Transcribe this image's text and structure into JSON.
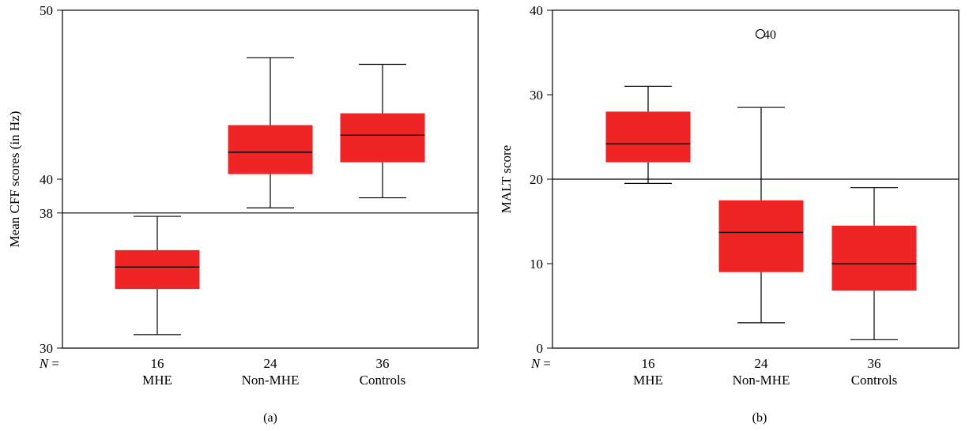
{
  "chart_data": [
    {
      "type": "box",
      "panel_label": "(a)",
      "ylabel": "Mean CFF scores (in Hz)",
      "ylim": [
        30,
        50
      ],
      "yticks": [
        30,
        38,
        40,
        50
      ],
      "n_prefix": "N =",
      "categories": [
        "MHE",
        "Non-MHE",
        "Controls"
      ],
      "n_values": [
        "16",
        "24",
        "36"
      ],
      "reference_line": 38,
      "box_color": "#ee2524",
      "boxes": [
        {
          "whisker_low": 30.8,
          "q1": 33.5,
          "median": 34.8,
          "q3": 35.8,
          "whisker_high": 37.8
        },
        {
          "whisker_low": 38.3,
          "q1": 40.3,
          "median": 41.6,
          "q3": 43.2,
          "whisker_high": 47.2
        },
        {
          "whisker_low": 38.9,
          "q1": 41.0,
          "median": 42.6,
          "q3": 43.9,
          "whisker_high": 46.8
        }
      ],
      "outliers": []
    },
    {
      "type": "box",
      "panel_label": "(b)",
      "ylabel": "MALT score",
      "ylim": [
        0,
        40
      ],
      "yticks": [
        0,
        10,
        20,
        30,
        40
      ],
      "n_prefix": "N =",
      "categories": [
        "MHE",
        "Non-MHE",
        "Controls"
      ],
      "n_values": [
        "16",
        "24",
        "36"
      ],
      "reference_line": 20,
      "box_color": "#ee2524",
      "boxes": [
        {
          "whisker_low": 19.5,
          "q1": 22.0,
          "median": 24.2,
          "q3": 28.0,
          "whisker_high": 31.0
        },
        {
          "whisker_low": 3.0,
          "q1": 9.0,
          "median": 13.7,
          "q3": 17.5,
          "whisker_high": 28.5
        },
        {
          "whisker_low": 1.0,
          "q1": 6.8,
          "median": 10.0,
          "q3": 14.5,
          "whisker_high": 19.0
        }
      ],
      "outliers": [
        {
          "category_index": 0,
          "value": 37.2,
          "label": "40"
        }
      ]
    }
  ]
}
